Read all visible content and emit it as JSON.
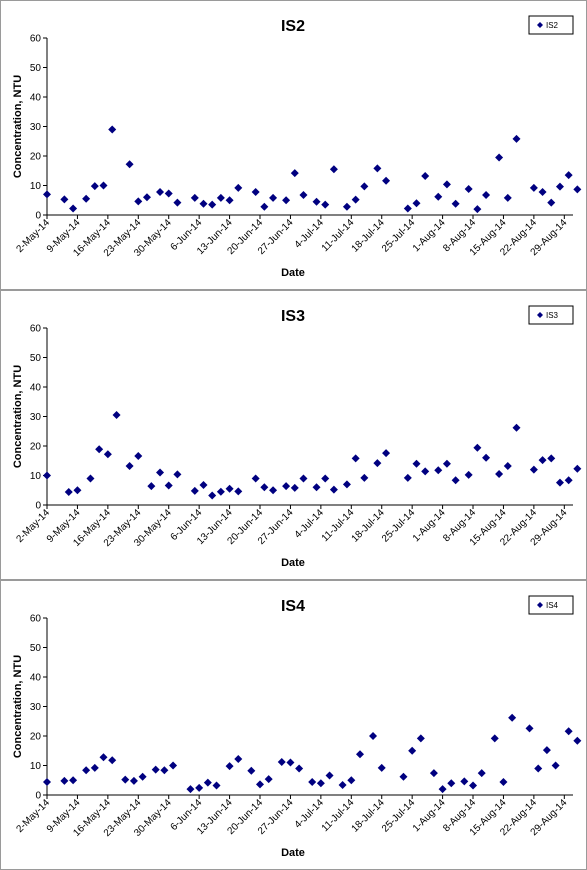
{
  "chart_data": [
    {
      "type": "scatter",
      "title": "IS2",
      "xlabel": "Date",
      "ylabel": "Concentration, NTU",
      "ylim": [
        0,
        60
      ],
      "yticks": [
        0,
        10,
        20,
        30,
        40,
        50,
        60
      ],
      "xlim": [
        "2014-05-02",
        "2014-08-31"
      ],
      "xtick_labels": [
        "2-May-14",
        "9-May-14",
        "16-May-14",
        "23-May-14",
        "30-May-14",
        "6-Jun-14",
        "13-Jun-14",
        "20-Jun-14",
        "27-Jun-14",
        "4-Jul-14",
        "11-Jul-14",
        "18-Jul-14",
        "25-Jul-14",
        "1-Aug-14",
        "8-Aug-14",
        "15-Aug-14",
        "22-Aug-14",
        "29-Aug-14"
      ],
      "grid": false,
      "legend_placement": "top-right",
      "series": [
        {
          "name": "IS2",
          "color": "#000080",
          "points": [
            [
              "2014-05-02",
              7
            ],
            [
              "2014-05-06",
              5.3
            ],
            [
              "2014-05-08",
              2.2
            ],
            [
              "2014-05-11",
              5.5
            ],
            [
              "2014-05-13",
              9.8
            ],
            [
              "2014-05-15",
              10
            ],
            [
              "2014-05-17",
              29
            ],
            [
              "2014-05-21",
              17.2
            ],
            [
              "2014-05-23",
              4.6
            ],
            [
              "2014-05-25",
              6
            ],
            [
              "2014-05-28",
              7.8
            ],
            [
              "2014-05-30",
              7.3
            ],
            [
              "2014-06-01",
              4.2
            ],
            [
              "2014-06-05",
              5.8
            ],
            [
              "2014-06-07",
              3.8
            ],
            [
              "2014-06-09",
              3.5
            ],
            [
              "2014-06-11",
              5.8
            ],
            [
              "2014-06-13",
              5
            ],
            [
              "2014-06-15",
              9.2
            ],
            [
              "2014-06-19",
              7.8
            ],
            [
              "2014-06-21",
              2.8
            ],
            [
              "2014-06-23",
              5.8
            ],
            [
              "2014-06-26",
              5
            ],
            [
              "2014-06-28",
              14.2
            ],
            [
              "2014-06-30",
              6.8
            ],
            [
              "2014-07-03",
              4.5
            ],
            [
              "2014-07-05",
              3.5
            ],
            [
              "2014-07-07",
              15.5
            ],
            [
              "2014-07-10",
              2.8
            ],
            [
              "2014-07-12",
              5.2
            ],
            [
              "2014-07-14",
              9.7
            ],
            [
              "2014-07-17",
              15.8
            ],
            [
              "2014-07-19",
              11.6
            ],
            [
              "2014-07-24",
              2.2
            ],
            [
              "2014-07-26",
              4
            ],
            [
              "2014-07-28",
              13.2
            ],
            [
              "2014-07-31",
              6.2
            ],
            [
              "2014-08-02",
              10.4
            ],
            [
              "2014-08-04",
              3.8
            ],
            [
              "2014-08-07",
              8.8
            ],
            [
              "2014-08-09",
              2
            ],
            [
              "2014-08-11",
              6.8
            ],
            [
              "2014-08-14",
              19.5
            ],
            [
              "2014-08-16",
              5.8
            ],
            [
              "2014-08-18",
              25.8
            ],
            [
              "2014-08-22",
              9.2
            ],
            [
              "2014-08-24",
              7.8
            ],
            [
              "2014-08-26",
              4.2
            ],
            [
              "2014-08-28",
              9.6
            ],
            [
              "2014-08-30",
              13.5
            ],
            [
              "2014-09-01",
              8.7
            ]
          ]
        }
      ]
    },
    {
      "type": "scatter",
      "title": "IS3",
      "xlabel": "Date",
      "ylabel": "Concentration, NTU",
      "ylim": [
        0,
        60
      ],
      "yticks": [
        0,
        10,
        20,
        30,
        40,
        50,
        60
      ],
      "xlim": [
        "2014-05-02",
        "2014-08-31"
      ],
      "xtick_labels": [
        "2-May-14",
        "9-May-14",
        "16-May-14",
        "23-May-14",
        "30-May-14",
        "6-Jun-14",
        "13-Jun-14",
        "20-Jun-14",
        "27-Jun-14",
        "4-Jul-14",
        "11-Jul-14",
        "18-Jul-14",
        "25-Jul-14",
        "1-Aug-14",
        "8-Aug-14",
        "15-Aug-14",
        "22-Aug-14",
        "29-Aug-14"
      ],
      "grid": false,
      "legend_placement": "top-right",
      "series": [
        {
          "name": "IS3",
          "color": "#000080",
          "points": [
            [
              "2014-05-02",
              10
            ],
            [
              "2014-05-07",
              4.4
            ],
            [
              "2014-05-09",
              5
            ],
            [
              "2014-05-12",
              9
            ],
            [
              "2014-05-14",
              18.9
            ],
            [
              "2014-05-16",
              17.2
            ],
            [
              "2014-05-18",
              30.5
            ],
            [
              "2014-05-21",
              13.2
            ],
            [
              "2014-05-23",
              16.6
            ],
            [
              "2014-05-26",
              6.4
            ],
            [
              "2014-05-28",
              11
            ],
            [
              "2014-05-30",
              6.6
            ],
            [
              "2014-06-01",
              10.4
            ],
            [
              "2014-06-05",
              4.8
            ],
            [
              "2014-06-07",
              6.8
            ],
            [
              "2014-06-09",
              3.2
            ],
            [
              "2014-06-11",
              4.5
            ],
            [
              "2014-06-13",
              5.5
            ],
            [
              "2014-06-15",
              4.6
            ],
            [
              "2014-06-19",
              9
            ],
            [
              "2014-06-21",
              6
            ],
            [
              "2014-06-23",
              5
            ],
            [
              "2014-06-26",
              6.4
            ],
            [
              "2014-06-28",
              5.8
            ],
            [
              "2014-06-30",
              9
            ],
            [
              "2014-07-03",
              6
            ],
            [
              "2014-07-05",
              9
            ],
            [
              "2014-07-07",
              5.2
            ],
            [
              "2014-07-10",
              7
            ],
            [
              "2014-07-12",
              15.8
            ],
            [
              "2014-07-14",
              9.2
            ],
            [
              "2014-07-17",
              14.2
            ],
            [
              "2014-07-19",
              17.6
            ],
            [
              "2014-07-24",
              9.2
            ],
            [
              "2014-07-26",
              14
            ],
            [
              "2014-07-28",
              11.4
            ],
            [
              "2014-07-31",
              11.8
            ],
            [
              "2014-08-02",
              14
            ],
            [
              "2014-08-04",
              8.4
            ],
            [
              "2014-08-07",
              10.2
            ],
            [
              "2014-08-09",
              19.4
            ],
            [
              "2014-08-11",
              16
            ],
            [
              "2014-08-14",
              10.5
            ],
            [
              "2014-08-16",
              13.2
            ],
            [
              "2014-08-18",
              26.2
            ],
            [
              "2014-08-22",
              12
            ],
            [
              "2014-08-24",
              15.2
            ],
            [
              "2014-08-26",
              15.8
            ],
            [
              "2014-08-28",
              7.6
            ],
            [
              "2014-08-30",
              8.4
            ],
            [
              "2014-09-01",
              12.3
            ]
          ]
        }
      ]
    },
    {
      "type": "scatter",
      "title": "IS4",
      "xlabel": "Date",
      "ylabel": "Concentration, NTU",
      "ylim": [
        0,
        60
      ],
      "yticks": [
        0,
        10,
        20,
        30,
        40,
        50,
        60
      ],
      "xlim": [
        "2014-05-02",
        "2014-08-31"
      ],
      "xtick_labels": [
        "2-May-14",
        "9-May-14",
        "16-May-14",
        "23-May-14",
        "30-May-14",
        "6-Jun-14",
        "13-Jun-14",
        "20-Jun-14",
        "27-Jun-14",
        "4-Jul-14",
        "11-Jul-14",
        "18-Jul-14",
        "25-Jul-14",
        "1-Aug-14",
        "8-Aug-14",
        "15-Aug-14",
        "22-Aug-14",
        "29-Aug-14"
      ],
      "grid": false,
      "legend_placement": "top-right",
      "series": [
        {
          "name": "IS4",
          "color": "#000080",
          "points": [
            [
              "2014-05-02",
              4.4
            ],
            [
              "2014-05-06",
              4.8
            ],
            [
              "2014-05-08",
              5
            ],
            [
              "2014-05-11",
              8.4
            ],
            [
              "2014-05-13",
              9.2
            ],
            [
              "2014-05-15",
              12.8
            ],
            [
              "2014-05-17",
              11.8
            ],
            [
              "2014-05-20",
              5.2
            ],
            [
              "2014-05-22",
              4.8
            ],
            [
              "2014-05-24",
              6.2
            ],
            [
              "2014-05-27",
              8.6
            ],
            [
              "2014-05-29",
              8.4
            ],
            [
              "2014-05-31",
              10
            ],
            [
              "2014-06-04",
              2
            ],
            [
              "2014-06-06",
              2.4
            ],
            [
              "2014-06-08",
              4.2
            ],
            [
              "2014-06-10",
              3.2
            ],
            [
              "2014-06-13",
              9.8
            ],
            [
              "2014-06-15",
              12.2
            ],
            [
              "2014-06-18",
              8.2
            ],
            [
              "2014-06-20",
              3.6
            ],
            [
              "2014-06-22",
              5.4
            ],
            [
              "2014-06-25",
              11.2
            ],
            [
              "2014-06-27",
              11
            ],
            [
              "2014-06-29",
              9
            ],
            [
              "2014-07-02",
              4.4
            ],
            [
              "2014-07-04",
              4
            ],
            [
              "2014-07-06",
              6.6
            ],
            [
              "2014-07-09",
              3.4
            ],
            [
              "2014-07-11",
              5
            ],
            [
              "2014-07-13",
              13.8
            ],
            [
              "2014-07-16",
              20
            ],
            [
              "2014-07-18",
              9.2
            ],
            [
              "2014-07-23",
              6.2
            ],
            [
              "2014-07-25",
              15
            ],
            [
              "2014-07-27",
              19.2
            ],
            [
              "2014-07-30",
              7.4
            ],
            [
              "2014-08-01",
              2
            ],
            [
              "2014-08-03",
              4
            ],
            [
              "2014-08-06",
              4.6
            ],
            [
              "2014-08-08",
              3.2
            ],
            [
              "2014-08-10",
              7.4
            ],
            [
              "2014-08-13",
              19.2
            ],
            [
              "2014-08-15",
              4.4
            ],
            [
              "2014-08-17",
              26.2
            ],
            [
              "2014-08-21",
              22.6
            ],
            [
              "2014-08-23",
              9
            ],
            [
              "2014-08-25",
              15.2
            ],
            [
              "2014-08-27",
              10
            ],
            [
              "2014-08-30",
              21.6
            ],
            [
              "2014-09-01",
              18.4
            ]
          ]
        }
      ]
    }
  ]
}
